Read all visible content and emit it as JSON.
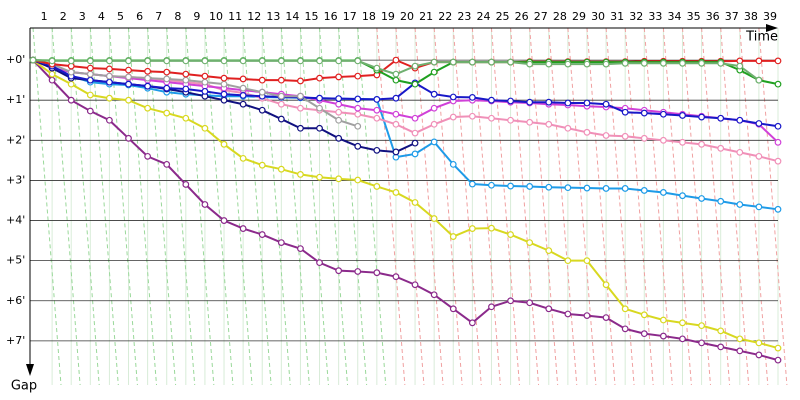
{
  "chart_data": {
    "type": "line",
    "x_label": "Time",
    "y_label": "Gap",
    "categories": [
      null,
      1,
      2,
      3,
      4,
      5,
      6,
      7,
      8,
      9,
      10,
      11,
      12,
      13,
      14,
      15,
      16,
      17,
      18,
      19,
      20,
      21,
      22,
      23,
      24,
      25,
      26,
      27,
      28,
      29,
      30,
      31,
      32,
      33,
      34,
      35,
      36,
      37,
      38,
      39
    ],
    "ylim": [
      -0.8,
      8.1
    ],
    "yticks": [
      {
        "value": 0,
        "label": "+0'"
      },
      {
        "value": 1,
        "label": "+1'"
      },
      {
        "value": 2,
        "label": "+2'"
      },
      {
        "value": 3,
        "label": "+3'"
      },
      {
        "value": 4,
        "label": "+4'"
      },
      {
        "value": 5,
        "label": "+5'"
      },
      {
        "value": 6,
        "label": "+6'"
      },
      {
        "value": 7,
        "label": "+7'"
      }
    ],
    "grid": true,
    "series": [
      {
        "color": "#8b2a8b",
        "values": [
          0,
          0.5,
          1.0,
          1.27,
          1.5,
          1.95,
          2.4,
          2.6,
          3.1,
          3.6,
          4.0,
          4.2,
          4.35,
          4.55,
          4.7,
          5.05,
          5.25,
          5.27,
          5.3,
          5.4,
          5.6,
          5.85,
          6.2,
          6.55,
          6.15,
          6.0,
          6.05,
          6.2,
          6.33,
          6.37,
          6.42,
          6.7,
          6.82,
          6.88,
          6.95,
          7.05,
          7.15,
          7.25,
          7.35,
          7.48
        ]
      },
      {
        "color": "#d8d820",
        "values": [
          0,
          0.35,
          0.6,
          0.87,
          0.95,
          1.0,
          1.2,
          1.32,
          1.45,
          1.7,
          2.1,
          2.45,
          2.62,
          2.72,
          2.85,
          2.92,
          2.96,
          2.99,
          3.15,
          3.3,
          3.55,
          3.95,
          4.4,
          4.2,
          4.19,
          4.35,
          4.55,
          4.75,
          5.0,
          5.0,
          5.6,
          6.2,
          6.35,
          6.48,
          6.55,
          6.62,
          6.75,
          6.95,
          7.05,
          7.18
        ]
      },
      {
        "color": "#1e9be8",
        "values": [
          0,
          0.15,
          0.4,
          0.55,
          0.6,
          0.62,
          0.7,
          0.8,
          0.85,
          0.88,
          0.9,
          0.9,
          0.92,
          0.93,
          0.94,
          0.95,
          0.96,
          0.97,
          0.98,
          2.42,
          2.34,
          2.04,
          2.6,
          3.09,
          3.12,
          3.14,
          3.15,
          3.17,
          3.18,
          3.19,
          3.2,
          3.2,
          3.25,
          3.3,
          3.38,
          3.45,
          3.52,
          3.6,
          3.66,
          3.72
        ]
      },
      {
        "color": "#f090b8",
        "values": [
          0,
          0.2,
          0.3,
          0.35,
          0.4,
          0.42,
          0.45,
          0.5,
          0.55,
          0.6,
          0.75,
          0.82,
          0.95,
          1.1,
          1.2,
          1.25,
          1.3,
          1.35,
          1.45,
          1.6,
          1.82,
          1.6,
          1.42,
          1.4,
          1.45,
          1.5,
          1.55,
          1.6,
          1.7,
          1.8,
          1.88,
          1.9,
          1.95,
          2.0,
          2.05,
          2.1,
          2.2,
          2.3,
          2.4,
          2.52
        ]
      },
      {
        "color": "#d040d8",
        "values": [
          0,
          0.2,
          0.3,
          0.35,
          0.4,
          0.45,
          0.5,
          0.55,
          0.6,
          0.65,
          0.7,
          0.75,
          0.8,
          0.85,
          0.9,
          1.0,
          1.1,
          1.2,
          1.25,
          1.35,
          1.45,
          1.2,
          1.02,
          1.0,
          1.02,
          1.05,
          1.07,
          1.1,
          1.12,
          1.15,
          1.17,
          1.2,
          1.25,
          1.3,
          1.35,
          1.4,
          1.45,
          1.5,
          1.6,
          2.05
        ]
      },
      {
        "color": "#101080",
        "values": [
          0,
          0.2,
          0.45,
          0.5,
          0.55,
          0.6,
          0.65,
          0.72,
          0.8,
          0.9,
          1.0,
          1.1,
          1.25,
          1.47,
          1.7,
          1.7,
          1.95,
          2.15,
          2.25,
          2.29,
          2.07,
          null,
          null,
          null,
          null,
          null,
          null,
          null,
          null,
          null,
          null,
          null,
          null,
          null,
          null,
          null,
          null,
          null,
          null,
          null
        ]
      },
      {
        "color": "#1818c8",
        "values": [
          0,
          0.15,
          0.4,
          0.5,
          0.55,
          0.6,
          0.65,
          0.7,
          0.72,
          0.78,
          0.85,
          0.88,
          0.9,
          0.92,
          0.93,
          0.95,
          0.96,
          0.97,
          0.98,
          0.95,
          0.57,
          0.85,
          0.92,
          0.93,
          1.0,
          1.02,
          1.05,
          1.05,
          1.07,
          1.07,
          1.1,
          1.3,
          1.32,
          1.35,
          1.38,
          1.42,
          1.45,
          1.5,
          1.58,
          1.65
        ]
      },
      {
        "color": "#a0a0a0",
        "values": [
          0,
          0.1,
          0.3,
          0.35,
          0.4,
          0.42,
          0.45,
          0.47,
          0.5,
          0.55,
          0.6,
          0.7,
          0.8,
          0.9,
          0.9,
          1.2,
          1.5,
          1.65,
          null,
          null,
          null,
          null,
          null,
          null,
          null,
          null,
          null,
          null,
          null,
          null,
          null,
          null,
          null,
          null,
          null,
          null,
          null,
          null,
          null,
          null
        ]
      },
      {
        "color": "#e02020",
        "values": [
          0,
          0.1,
          0.15,
          0.2,
          0.22,
          0.25,
          0.28,
          0.3,
          0.35,
          0.4,
          0.45,
          0.47,
          0.5,
          0.5,
          0.52,
          0.45,
          0.42,
          0.4,
          0.37,
          0.0,
          0.2,
          0.05,
          0.05,
          0.05,
          0.05,
          0.05,
          0.04,
          0.04,
          0.04,
          0.04,
          0.04,
          0.04,
          0.03,
          0.03,
          0.03,
          0.03,
          0.03,
          0.02,
          0.02,
          0.02
        ]
      },
      {
        "color": "#20a020",
        "values": [
          0,
          0.01,
          0.01,
          0.01,
          0.01,
          0.01,
          0.01,
          0.01,
          0.01,
          0.01,
          0.01,
          0.01,
          0.01,
          0.01,
          0.01,
          0.01,
          0.01,
          0.01,
          0.25,
          0.5,
          0.6,
          0.3,
          0.05,
          0.05,
          0.05,
          0.05,
          0.05,
          0.05,
          0.05,
          0.05,
          0.05,
          0.05,
          0.05,
          0.05,
          0.05,
          0.05,
          0.05,
          0.25,
          0.5,
          0.6
        ]
      },
      {
        "color": "#70b070",
        "values": [
          0,
          0.02,
          0.02,
          0.02,
          0.02,
          0.02,
          0.02,
          0.02,
          0.02,
          0.02,
          0.02,
          0.02,
          0.02,
          0.02,
          0.02,
          0.02,
          0.02,
          0.02,
          0.2,
          0.35,
          0.15,
          0.05,
          0.05,
          0.05,
          0.05,
          0.05,
          0.1,
          0.1,
          0.1,
          0.1,
          0.1,
          0.08,
          0.08,
          0.08,
          0.08,
          0.08,
          0.08,
          0.15,
          0.5,
          null
        ]
      }
    ]
  }
}
